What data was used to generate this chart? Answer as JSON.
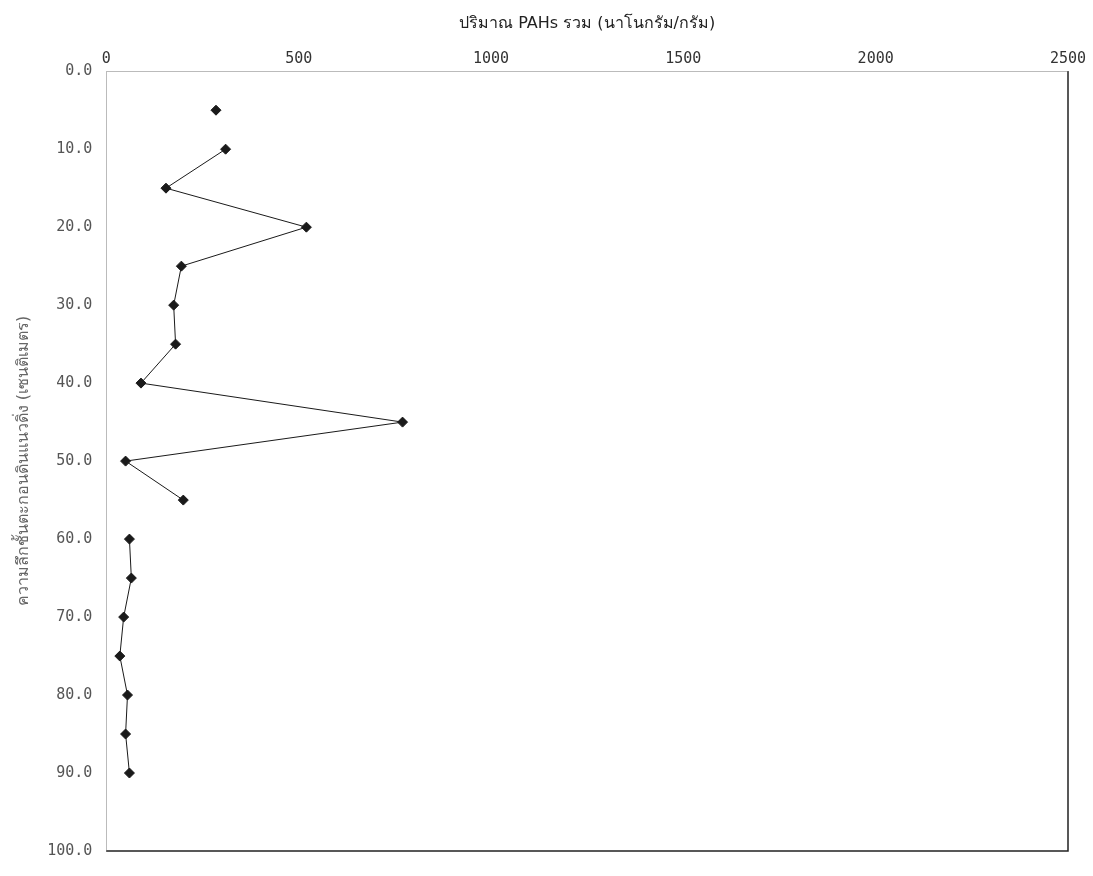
{
  "chart_data": {
    "type": "line",
    "xlabel": "ปริมาณ PAHs รวม (นาโนกรัม/กรัม)",
    "ylabel": "ความลึกชั้นตะกอนดินแนวดิ่ง (เซนติเมตร)",
    "xlim": [
      0,
      2500
    ],
    "xticks": [
      0,
      500,
      1000,
      1500,
      2000,
      2500
    ],
    "ylim": [
      100,
      0
    ],
    "yticks": [
      {
        "value": 0,
        "label": "0.0"
      },
      {
        "value": 10,
        "label": "10.0"
      },
      {
        "value": 20,
        "label": "20.0"
      },
      {
        "value": 30,
        "label": "30.0"
      },
      {
        "value": 40,
        "label": "40.0"
      },
      {
        "value": 50,
        "label": "50.0"
      },
      {
        "value": 60,
        "label": "60.0"
      },
      {
        "value": 70,
        "label": "70.0"
      },
      {
        "value": 80,
        "label": "80.0"
      },
      {
        "value": 90,
        "label": "90.0"
      },
      {
        "value": 100,
        "label": "100.0"
      }
    ],
    "grid": false,
    "legend": false,
    "marker": "diamond",
    "line_style": "solid",
    "series": [
      {
        "type": "scatter",
        "color": "#1a1a1a",
        "x": [
          285
        ],
        "values": [
          5
        ]
      },
      {
        "type": "line",
        "color": "#1a1a1a",
        "x": [
          310,
          155,
          520,
          195,
          175,
          180,
          90,
          770,
          50,
          200
        ],
        "values": [
          10,
          15,
          20,
          25,
          30,
          35,
          40,
          45,
          50,
          55
        ]
      },
      {
        "type": "line",
        "color": "#1a1a1a",
        "x": [
          60,
          65,
          45,
          35,
          55,
          50,
          60
        ],
        "values": [
          60,
          65,
          70,
          75,
          80,
          85,
          90
        ]
      }
    ]
  }
}
